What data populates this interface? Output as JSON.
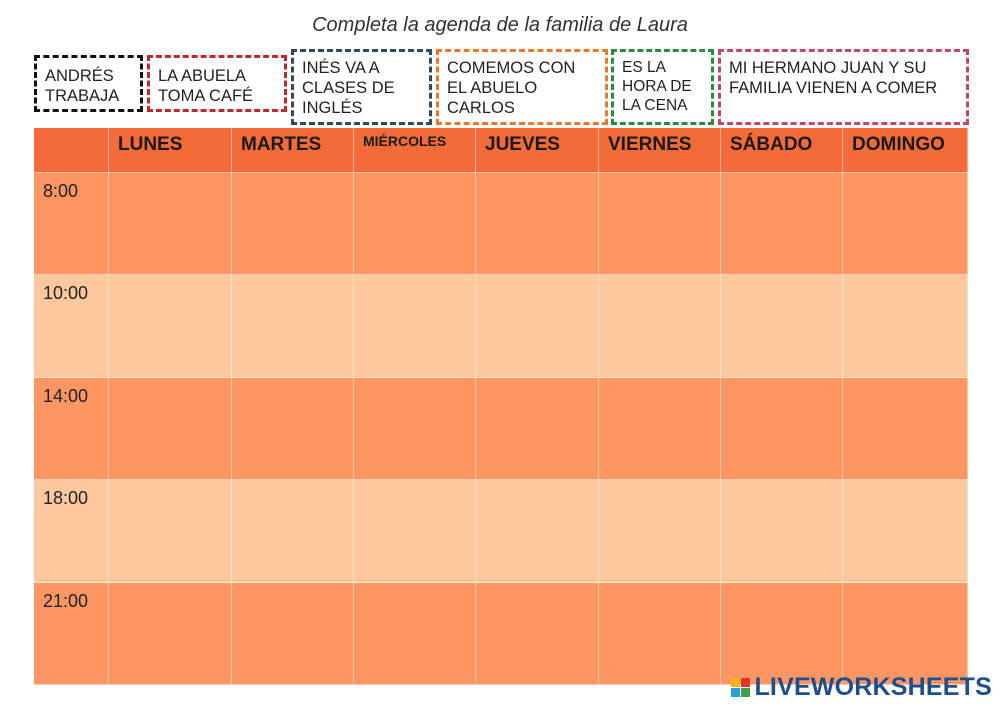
{
  "title": "Completa la agenda de la familia de Laura",
  "cards": [
    "ANDRÉS TRABAJA",
    "LA ABUELA TOMA CAFÉ",
    "INÉS VA A CLASES DE INGLÉS",
    "COMEMOS CON EL ABUELO CARLOS",
    "ES LA HORA DE LA CENA",
    "MI HERMANO JUAN Y SU FAMILIA VIENEN A COMER"
  ],
  "card_colors": [
    "#111111",
    "#c0282c",
    "#2f4a5c",
    "#e8782e",
    "#2b8a3b",
    "#c04a5e"
  ],
  "days": [
    "LUNES",
    "MARTES",
    "MIÉRCOLES",
    "JUEVES",
    "VIERNES",
    "SÁBADO",
    "DOMINGO"
  ],
  "times": [
    "8:00",
    "10:00",
    "14:00",
    "18:00",
    "21:00"
  ],
  "colors": {
    "header": "#f26b38",
    "row_dark": "#fd9662",
    "row_light": "#fdc89d",
    "brand": "#1f4e8c"
  },
  "brand": {
    "text": "LIVEWORKSHEETS",
    "icon": "liveworksheets-logo-icon"
  }
}
